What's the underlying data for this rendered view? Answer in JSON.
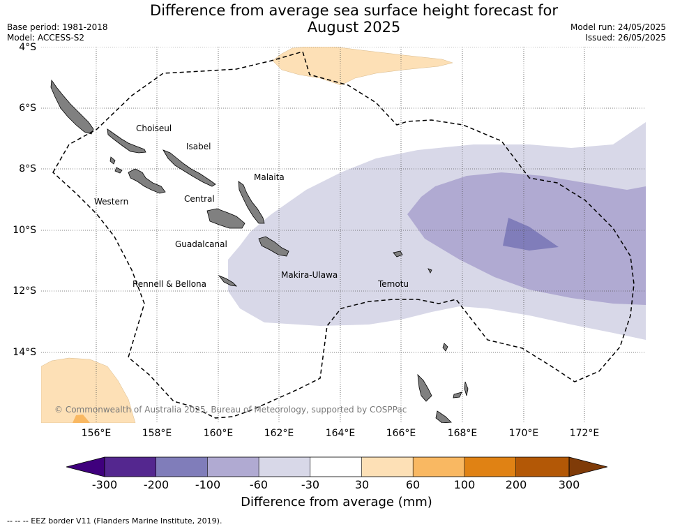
{
  "title_line1": "Difference from average sea surface height forecast for",
  "title_line2": "August 2025",
  "base_period": "Base period: 1981-2018",
  "model": "Model: ACCESS-S2",
  "model_run": "Model run: 24/05/2025",
  "issued": "Issued: 26/05/2025",
  "lat_labels": [
    "4°S",
    "6°S",
    "8°S",
    "10°S",
    "12°S",
    "14°S"
  ],
  "lon_labels": [
    "156°E",
    "158°E",
    "160°E",
    "162°E",
    "164°E",
    "166°E",
    "168°E",
    "170°E",
    "172°E"
  ],
  "places": {
    "choiseul": "Choiseul",
    "isabel": "Isabel",
    "malaita": "Malaita",
    "western": "Western",
    "central": "Central",
    "guadalcanal": "Guadalcanal",
    "makira": "Makira-Ulawa",
    "rennell": "Rennell & Bellona",
    "temotu": "Temotu"
  },
  "copyright": "© Commonwealth of Australia 2025, Bureau of Meteorology, supported by COSPPac",
  "colorbar": {
    "title": "Difference from average (mm)",
    "labels": [
      "-300",
      "-200",
      "-100",
      "-60",
      "-30",
      "30",
      "60",
      "100",
      "200",
      "300"
    ],
    "colors": [
      "#3f007d",
      "#54278f",
      "#807dba",
      "#b0aad2",
      "#d8d8e8",
      "#ffffff",
      "#fde0b6",
      "#f9b862",
      "#e08214",
      "#b35806",
      "#7f3b08"
    ]
  },
  "legend_note": "-- -- -- EEZ border V11 (Flanders Marine Institute, 2019)."
}
